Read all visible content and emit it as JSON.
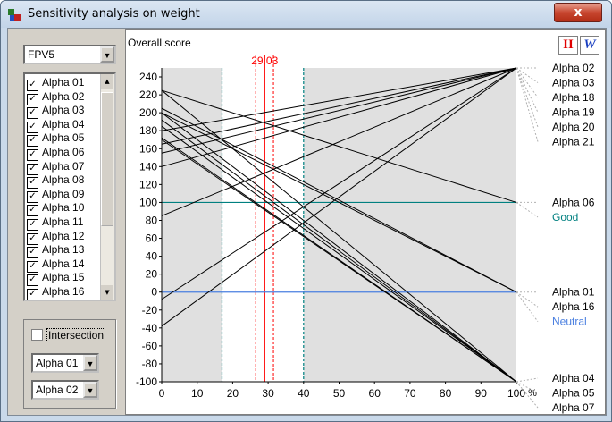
{
  "window": {
    "title": "Sensitivity analysis on weight",
    "close_label": "x"
  },
  "left_panel": {
    "criterion_select": "FPV5",
    "list_items": [
      "Alpha 01",
      "Alpha 02",
      "Alpha 03",
      "Alpha 04",
      "Alpha 05",
      "Alpha 06",
      "Alpha 07",
      "Alpha 08",
      "Alpha 09",
      "Alpha 10",
      "Alpha 11",
      "Alpha 12",
      "Alpha 13",
      "Alpha 14",
      "Alpha 15",
      "Alpha 16"
    ],
    "intersection_label": "Intersection",
    "select_a": "Alpha 01",
    "select_b": "Alpha 02"
  },
  "plot": {
    "title": "Overall score",
    "icon_a": "II",
    "icon_b": "W",
    "colors": {
      "good": "#008080",
      "neutral": "#4a7fe0",
      "cursor": "#ff0000",
      "band": "#e0e0e0"
    }
  },
  "chart_data": {
    "type": "line",
    "x_unit": "%",
    "xlim": [
      0,
      100
    ],
    "ylim": [
      -100,
      250
    ],
    "x_ticks": [
      0,
      10,
      20,
      30,
      40,
      50,
      60,
      70,
      80,
      90,
      100
    ],
    "y_ticks": [
      240,
      220,
      200,
      180,
      160,
      140,
      120,
      100,
      80,
      60,
      40,
      20,
      0,
      -20,
      -40,
      -60,
      -80,
      -100
    ],
    "current_weight": 29.03,
    "current_weight_label": "29.03",
    "weight_interval": [
      17,
      40
    ],
    "inner_interval": [
      26.5,
      31.5
    ],
    "good_level": 100,
    "neutral_level": 0,
    "series": [
      {
        "name": "Alpha 01",
        "x": [
          0,
          100
        ],
        "y": [
          205,
          0
        ]
      },
      {
        "name": "Alpha 02",
        "x": [
          0,
          100
        ],
        "y": [
          140,
          250
        ]
      },
      {
        "name": "Alpha 03",
        "x": [
          0,
          100
        ],
        "y": [
          165,
          250
        ]
      },
      {
        "name": "Alpha 04",
        "x": [
          0,
          100
        ],
        "y": [
          225,
          -100
        ]
      },
      {
        "name": "Alpha 05",
        "x": [
          0,
          100
        ],
        "y": [
          200,
          -100
        ]
      },
      {
        "name": "Alpha 06",
        "x": [
          0,
          100
        ],
        "y": [
          225,
          100
        ]
      },
      {
        "name": "Alpha 07",
        "x": [
          0,
          100
        ],
        "y": [
          192,
          -100
        ]
      },
      {
        "name": "Alpha 08",
        "x": [
          0,
          100
        ],
        "y": [
          85,
          250
        ]
      },
      {
        "name": "Alpha 09",
        "x": [
          0,
          100
        ],
        "y": [
          180,
          250
        ]
      },
      {
        "name": "Alpha 10",
        "x": [
          0,
          100
        ],
        "y": [
          155,
          250
        ]
      },
      {
        "name": "Alpha 11",
        "x": [
          0,
          100
        ],
        "y": [
          -8,
          250
        ]
      },
      {
        "name": "Alpha 12",
        "x": [
          0,
          100
        ],
        "y": [
          -38,
          250
        ]
      },
      {
        "name": "Alpha 13",
        "x": [
          0,
          100
        ],
        "y": [
          185,
          -100
        ]
      },
      {
        "name": "Alpha 14",
        "x": [
          0,
          100
        ],
        "y": [
          172,
          -100
        ]
      },
      {
        "name": "Alpha 15",
        "x": [
          0,
          100
        ],
        "y": [
          170,
          -100
        ]
      },
      {
        "name": "Alpha 16",
        "x": [
          0,
          100
        ],
        "y": [
          200,
          0
        ]
      }
    ],
    "right_labels": [
      {
        "text": "Alpha 02",
        "y": 250,
        "color": "#000000"
      },
      {
        "text": "Alpha 03",
        "y": 250,
        "color": "#000000"
      },
      {
        "text": "Alpha 18",
        "y": 250,
        "color": "#000000"
      },
      {
        "text": "Alpha 19",
        "y": 250,
        "color": "#000000"
      },
      {
        "text": "Alpha 20",
        "y": 250,
        "color": "#000000"
      },
      {
        "text": "Alpha 21",
        "y": 250,
        "color": "#000000"
      },
      {
        "text": "Alpha 06",
        "y": 100,
        "color": "#000000"
      },
      {
        "text": "Good",
        "y": 100,
        "color": "#008080"
      },
      {
        "text": "Alpha 01",
        "y": 0,
        "color": "#000000"
      },
      {
        "text": "Alpha 16",
        "y": 0,
        "color": "#000000"
      },
      {
        "text": "Neutral",
        "y": 0,
        "color": "#4a7fe0"
      },
      {
        "text": "Alpha 04",
        "y": -100,
        "color": "#000000"
      },
      {
        "text": "Alpha 05",
        "y": -100,
        "color": "#000000"
      },
      {
        "text": "Alpha 07",
        "y": -100,
        "color": "#000000"
      }
    ]
  }
}
